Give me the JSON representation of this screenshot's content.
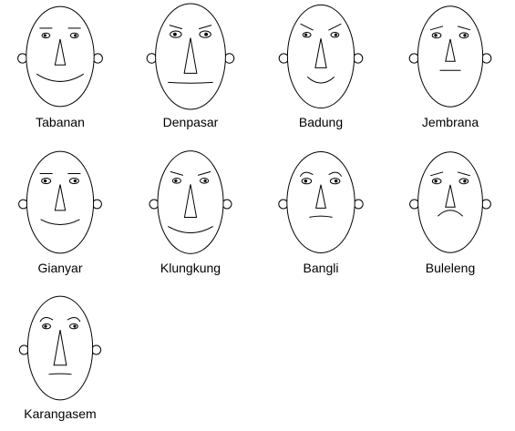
{
  "chart_data": {
    "type": "chernoff_faces",
    "title": "",
    "faces": [
      {
        "label": "Tabanan",
        "head_h": 0.78,
        "head_w": 0.85,
        "eye_size": 0.35,
        "brow": "flat",
        "nose": 0.55,
        "mouth": 0.9,
        "smile": 0.95,
        "ear": 0.55
      },
      {
        "label": "Denpasar",
        "head_h": 1.0,
        "head_w": 0.95,
        "eye_size": 0.8,
        "brow": "down",
        "nose": 0.95,
        "mouth": 0.85,
        "smile": 0.55,
        "ear": 0.6
      },
      {
        "label": "Badung",
        "head_h": 0.9,
        "head_w": 0.8,
        "eye_size": 0.35,
        "brow": "angry",
        "nose": 0.7,
        "mouth": 0.4,
        "smile": 1.0,
        "ear": 0.55
      },
      {
        "label": "Jembrana",
        "head_h": 0.8,
        "head_w": 0.72,
        "eye_size": 0.45,
        "brow": "sad",
        "nose": 0.4,
        "mouth": 0.25,
        "smile": 0.5,
        "ear": 0.55
      },
      {
        "label": "Gianyar",
        "head_h": 0.85,
        "head_w": 0.8,
        "eye_size": 0.5,
        "brow": "flat",
        "nose": 0.55,
        "mouth": 0.7,
        "smile": 0.85,
        "ear": 0.45
      },
      {
        "label": "Klungkung",
        "head_h": 0.88,
        "head_w": 0.75,
        "eye_size": 0.4,
        "brow": "down",
        "nose": 0.85,
        "mouth": 0.85,
        "smile": 0.9,
        "ear": 0.5
      },
      {
        "label": "Bangli",
        "head_h": 0.82,
        "head_w": 0.85,
        "eye_size": 0.55,
        "brow": "curl",
        "nose": 0.45,
        "mouth": 0.3,
        "smile": 0.4,
        "ear": 0.5
      },
      {
        "label": "Buleleng",
        "head_h": 0.8,
        "head_w": 0.7,
        "eye_size": 0.45,
        "brow": "sad",
        "nose": 0.4,
        "mouth": 0.35,
        "smile": 0.0,
        "ear": 0.5
      },
      {
        "label": "Karangasem",
        "head_h": 0.92,
        "head_w": 0.72,
        "eye_size": 0.35,
        "brow": "curl",
        "nose": 0.95,
        "mouth": 0.3,
        "smile": 0.45,
        "ear": 0.5
      }
    ]
  }
}
